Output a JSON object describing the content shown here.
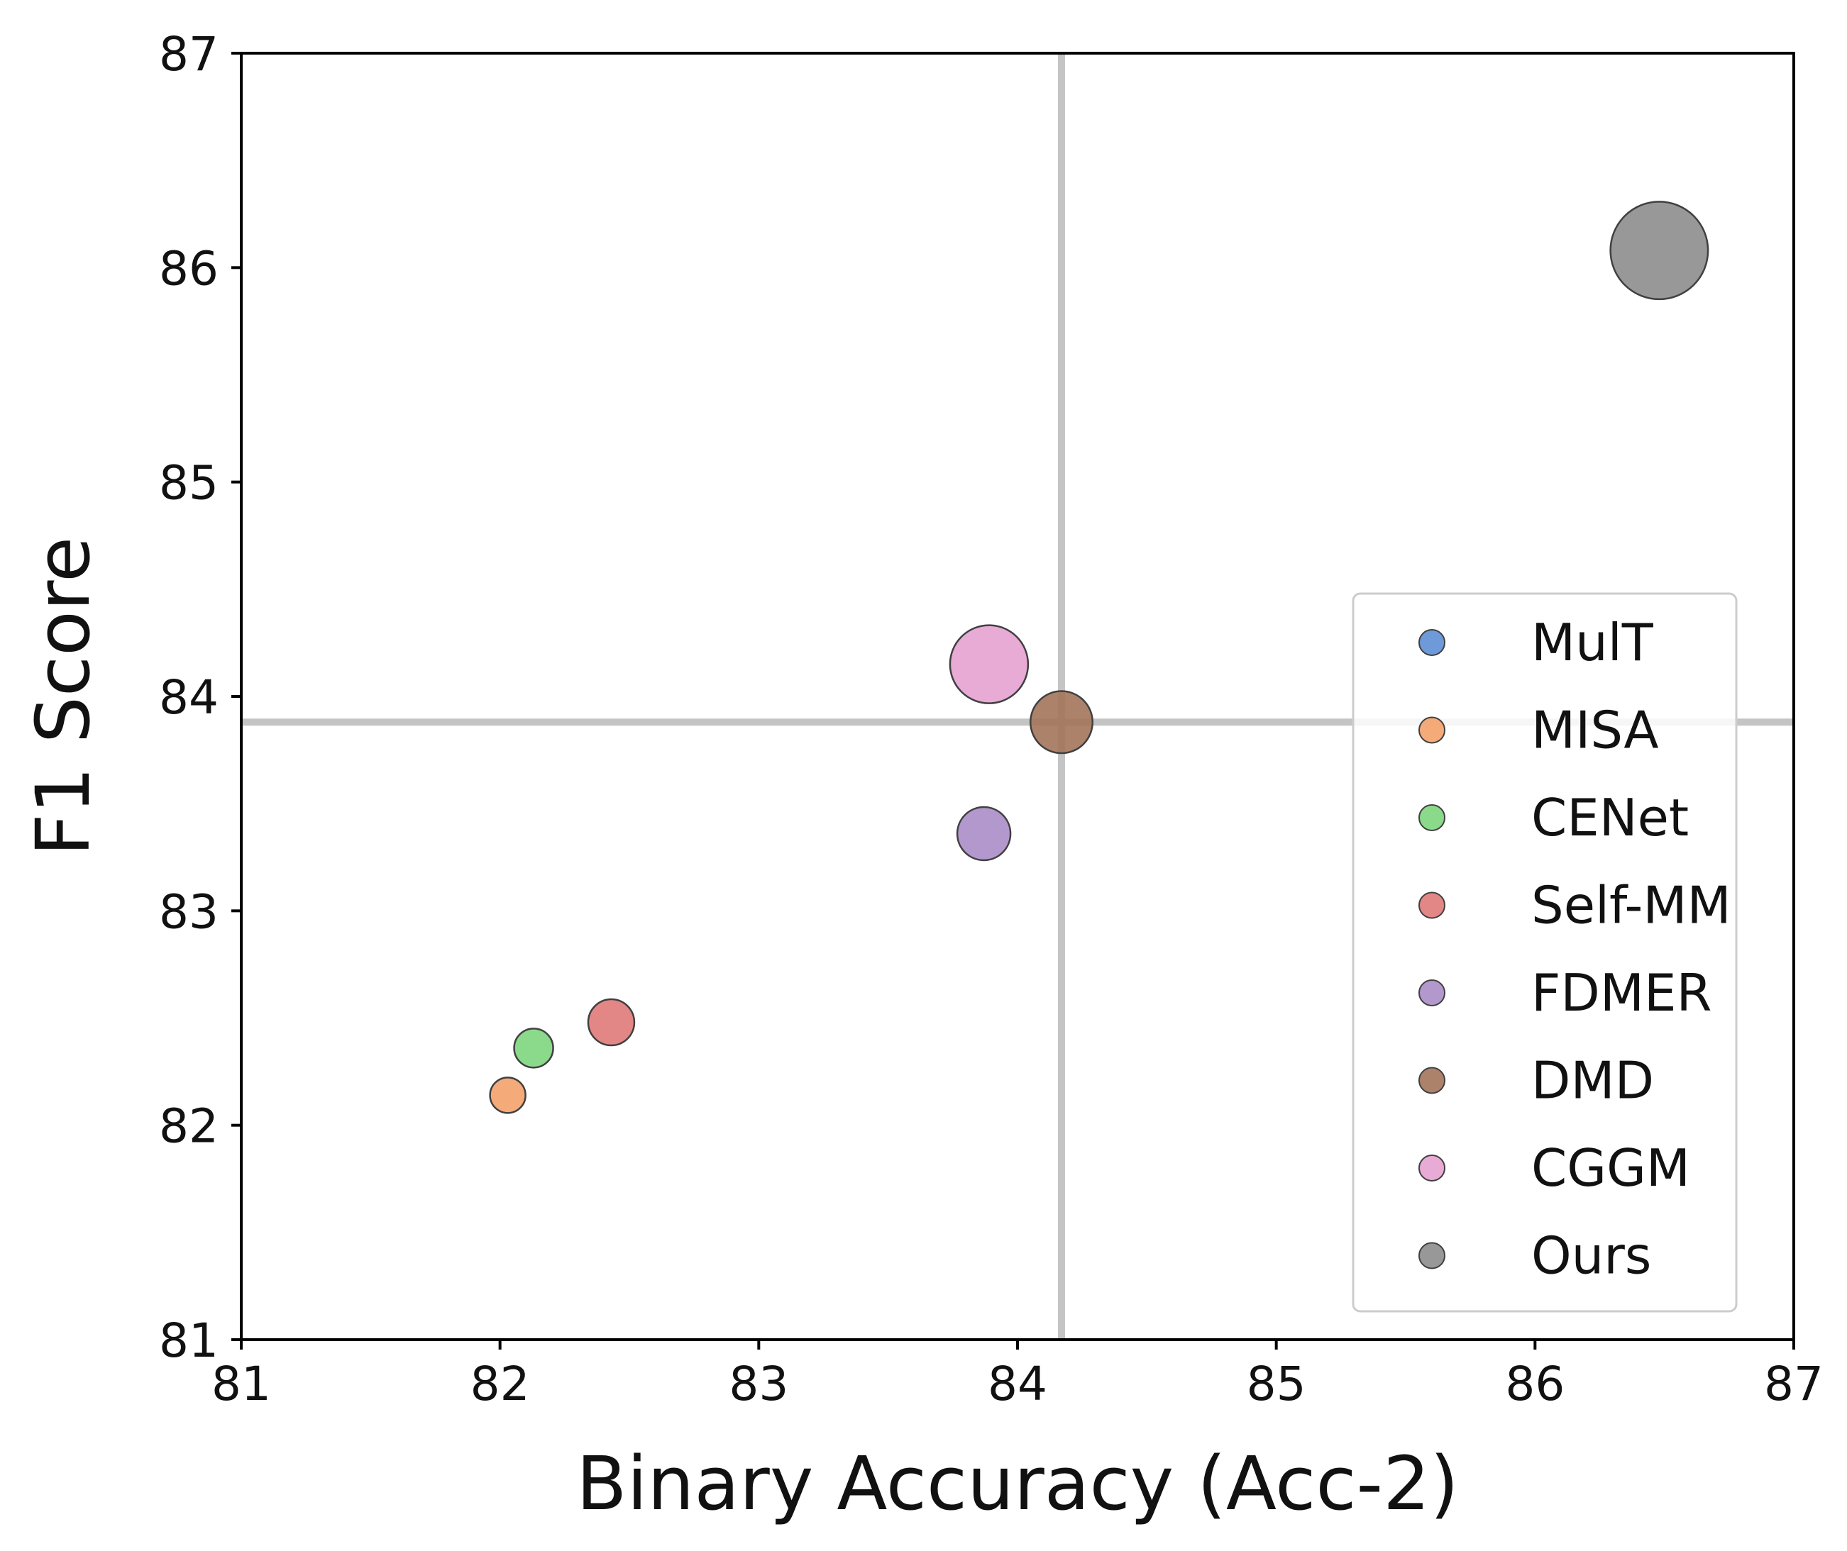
{
  "chart_data": {
    "type": "scatter",
    "title": "",
    "xlabel": "Binary Accuracy (Acc-2)",
    "ylabel": "F1 Score",
    "xlim": [
      81,
      87
    ],
    "ylim": [
      81,
      87
    ],
    "xticks": [
      81,
      82,
      83,
      84,
      85,
      86,
      87
    ],
    "yticks": [
      81,
      82,
      83,
      84,
      85,
      86,
      87
    ],
    "grid": false,
    "reference_lines": {
      "x": 84.17,
      "y": 83.88
    },
    "legend_position": "lower-right",
    "series": [
      {
        "name": "MulT",
        "x": null,
        "y": null,
        "color": "#5f8fd6",
        "size": 1.0
      },
      {
        "name": "MISA",
        "x": 82.03,
        "y": 82.14,
        "color": "#f4a26a",
        "size": 1.0
      },
      {
        "name": "CENet",
        "x": 82.13,
        "y": 82.36,
        "color": "#7ed67e",
        "size": 1.1
      },
      {
        "name": "Self-MM",
        "x": 82.43,
        "y": 82.48,
        "color": "#e07a79",
        "size": 1.3
      },
      {
        "name": "FDMER",
        "x": 83.87,
        "y": 83.36,
        "color": "#ab8dc8",
        "size": 1.5
      },
      {
        "name": "DMD",
        "x": 84.17,
        "y": 83.88,
        "color": "#a3755a",
        "size": 1.75
      },
      {
        "name": "CGGM",
        "x": 83.89,
        "y": 84.15,
        "color": "#e5a2d1",
        "size": 2.2
      },
      {
        "name": "Ours",
        "x": 86.48,
        "y": 86.08,
        "color": "#8d8d8d",
        "size": 2.75
      }
    ]
  }
}
